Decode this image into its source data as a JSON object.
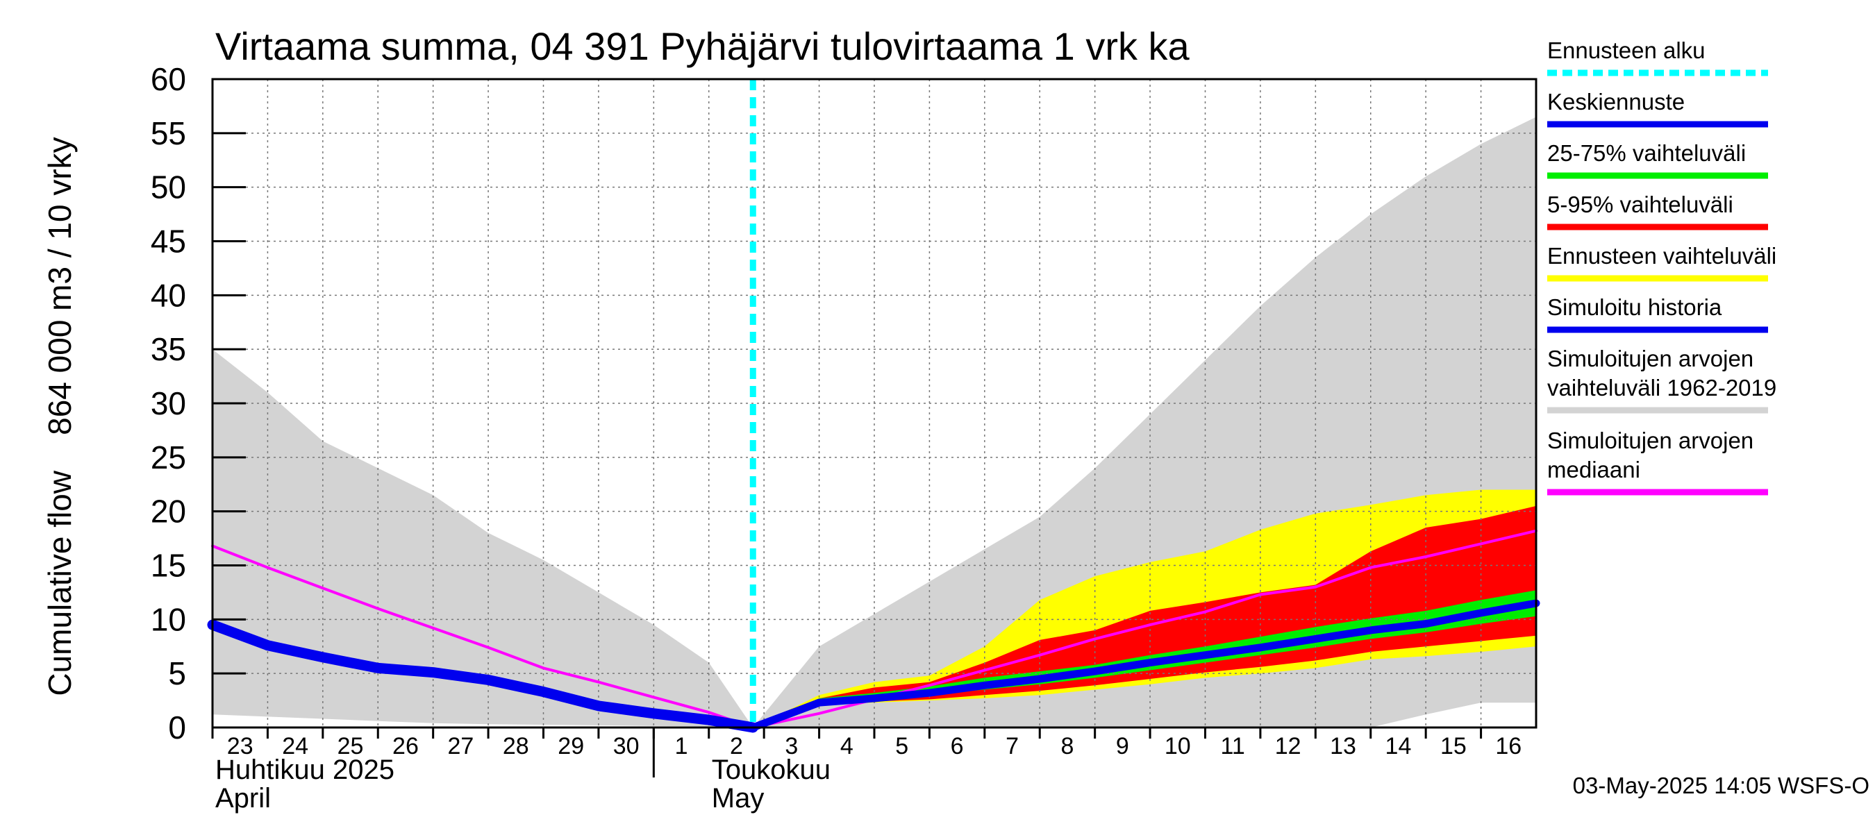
{
  "chart_data": {
    "type": "area",
    "title": "Virtaama summa, 04 391 Pyhäjärvi tulovirtaama 1 vrk ka",
    "ylabel": "Cumulative flow    864 000 m3 / 10 vrky",
    "ylim": [
      0,
      60
    ],
    "yticks": [
      0,
      5,
      10,
      15,
      20,
      25,
      30,
      35,
      40,
      45,
      50,
      55,
      60
    ],
    "grid": true,
    "x_dates": [
      "2025-04-23",
      "2025-04-24",
      "2025-04-25",
      "2025-04-26",
      "2025-04-27",
      "2025-04-28",
      "2025-04-29",
      "2025-04-30",
      "2025-05-01",
      "2025-05-02",
      "2025-05-03",
      "2025-05-04",
      "2025-05-05",
      "2025-05-06",
      "2025-05-07",
      "2025-05-08",
      "2025-05-09",
      "2025-05-10",
      "2025-05-11",
      "2025-05-12",
      "2025-05-13",
      "2025-05-14",
      "2025-05-15",
      "2025-05-16",
      "2025-05-17"
    ],
    "x_tick_labels": [
      "23",
      "24",
      "25",
      "26",
      "27",
      "28",
      "29",
      "30",
      "1",
      "2",
      "3",
      "4",
      "5",
      "6",
      "7",
      "8",
      "9",
      "10",
      "11",
      "12",
      "13",
      "14",
      "15",
      "16"
    ],
    "month_labels": [
      {
        "line1": "Huhtikuu  2025",
        "line2": "April",
        "date": "2025-04-23"
      },
      {
        "line1": "Toukokuu",
        "line2": "May",
        "date": "2025-05-02"
      }
    ],
    "forecast_start": "2025-05-02.8",
    "series": [
      {
        "name": "Simuloitujen arvojen vaihteluväli 1962-2019",
        "kind": "band",
        "color": "#d3d3d3",
        "x": [
          "2025-04-23",
          "2025-04-24",
          "2025-04-25",
          "2025-04-26",
          "2025-04-27",
          "2025-04-28",
          "2025-04-29",
          "2025-04-30",
          "2025-05-01",
          "2025-05-02",
          "2025-05-02.8",
          "2025-05-04",
          "2025-05-05",
          "2025-05-06",
          "2025-05-07",
          "2025-05-08",
          "2025-05-09",
          "2025-05-10",
          "2025-05-11",
          "2025-05-12",
          "2025-05-13",
          "2025-05-14",
          "2025-05-15",
          "2025-05-16",
          "2025-05-17"
        ],
        "lower": [
          1.2,
          1.0,
          0.8,
          0.6,
          0.4,
          0.3,
          0.25,
          0.2,
          0.15,
          0.1,
          0,
          0,
          0,
          0,
          0,
          0,
          0,
          0,
          0,
          0,
          0,
          0,
          1.2,
          2.3,
          2.3
        ],
        "upper": [
          35,
          31,
          26.5,
          24,
          21.5,
          18,
          15.5,
          12.5,
          9.5,
          6,
          0,
          7.5,
          10.5,
          13.5,
          16.5,
          19.5,
          24,
          29,
          34,
          39,
          43.5,
          47.5,
          51,
          54,
          56.5
        ]
      },
      {
        "name": "Ennusteen vaihteluväli",
        "kind": "band",
        "color": "#ffff00",
        "x": [
          "2025-05-02.8",
          "2025-05-04",
          "2025-05-05",
          "2025-05-06",
          "2025-05-07",
          "2025-05-08",
          "2025-05-09",
          "2025-05-10",
          "2025-05-11",
          "2025-05-12",
          "2025-05-13",
          "2025-05-14",
          "2025-05-15",
          "2025-05-16",
          "2025-05-17"
        ],
        "lower": [
          0,
          2.2,
          2.3,
          2.5,
          2.7,
          3.0,
          3.5,
          4.0,
          4.6,
          5.0,
          5.5,
          6.3,
          6.6,
          7.0,
          7.5
        ],
        "upper": [
          0,
          3.0,
          4.2,
          4.8,
          7.5,
          11.8,
          14.0,
          15.3,
          16.3,
          18.3,
          19.8,
          20.6,
          21.5,
          22.0,
          22.0
        ]
      },
      {
        "name": "5-95% vaihteluväli",
        "kind": "band",
        "color": "#ff0000",
        "x": [
          "2025-05-02.8",
          "2025-05-04",
          "2025-05-05",
          "2025-05-06",
          "2025-05-07",
          "2025-05-08",
          "2025-05-09",
          "2025-05-10",
          "2025-05-11",
          "2025-05-12",
          "2025-05-13",
          "2025-05-14",
          "2025-05-15",
          "2025-05-16",
          "2025-05-17"
        ],
        "lower": [
          0,
          2.3,
          2.4,
          2.6,
          3.0,
          3.4,
          3.9,
          4.5,
          5.1,
          5.6,
          6.2,
          7.0,
          7.5,
          8.0,
          8.5
        ],
        "upper": [
          0,
          2.7,
          3.7,
          4.2,
          6.0,
          8.1,
          9.0,
          10.8,
          11.6,
          12.5,
          13.2,
          16.3,
          18.5,
          19.3,
          20.5
        ]
      },
      {
        "name": "25-75% vaihteluväli",
        "kind": "band",
        "color": "#00ee00",
        "x": [
          "2025-05-02.8",
          "2025-05-04",
          "2025-05-05",
          "2025-05-06",
          "2025-05-07",
          "2025-05-08",
          "2025-05-09",
          "2025-05-10",
          "2025-05-11",
          "2025-05-12",
          "2025-05-13",
          "2025-05-14",
          "2025-05-15",
          "2025-05-16",
          "2025-05-17"
        ],
        "lower": [
          0,
          2.2,
          2.6,
          3.0,
          3.5,
          4.0,
          4.6,
          5.3,
          6.0,
          6.7,
          7.4,
          8.2,
          8.8,
          9.6,
          10.3
        ],
        "upper": [
          0,
          2.7,
          3.2,
          3.8,
          4.6,
          5.2,
          5.8,
          6.7,
          7.5,
          8.4,
          9.3,
          10.1,
          10.8,
          11.8,
          12.7
        ]
      },
      {
        "name": "Keskiennuste",
        "kind": "line",
        "color": "#0000ee",
        "x": [
          "2025-05-02.8",
          "2025-05-04",
          "2025-05-05",
          "2025-05-06",
          "2025-05-07",
          "2025-05-08",
          "2025-05-09",
          "2025-05-10",
          "2025-05-11",
          "2025-05-12",
          "2025-05-13",
          "2025-05-14",
          "2025-05-15",
          "2025-05-16",
          "2025-05-17"
        ],
        "y": [
          0,
          2.3,
          2.7,
          3.2,
          3.9,
          4.5,
          5.2,
          6.0,
          6.7,
          7.4,
          8.2,
          9.0,
          9.6,
          10.6,
          11.5
        ]
      },
      {
        "name": "Simuloitu historia",
        "kind": "line",
        "color": "#0000ee",
        "x": [
          "2025-04-23",
          "2025-04-24",
          "2025-04-25",
          "2025-04-26",
          "2025-04-27",
          "2025-04-28",
          "2025-04-29",
          "2025-04-30",
          "2025-05-01",
          "2025-05-02",
          "2025-05-02.8"
        ],
        "y": [
          9.5,
          7.6,
          6.5,
          5.5,
          5.1,
          4.4,
          3.3,
          2.0,
          1.3,
          0.7,
          0
        ]
      },
      {
        "name": "Simuloitujen arvojen mediaani",
        "kind": "line",
        "color": "#ff00ff",
        "x": [
          "2025-04-23",
          "2025-04-24",
          "2025-04-25",
          "2025-04-26",
          "2025-04-27",
          "2025-04-28",
          "2025-04-29",
          "2025-04-30",
          "2025-05-01",
          "2025-05-02",
          "2025-05-02.8",
          "2025-05-04",
          "2025-05-05",
          "2025-05-06",
          "2025-05-07",
          "2025-05-08",
          "2025-05-09",
          "2025-05-10",
          "2025-05-11",
          "2025-05-12",
          "2025-05-13",
          "2025-05-14",
          "2025-05-15",
          "2025-05-16",
          "2025-05-17"
        ],
        "y": [
          16.8,
          14.8,
          12.9,
          11.0,
          9.2,
          7.4,
          5.5,
          4.2,
          2.8,
          1.4,
          0,
          1.3,
          2.6,
          3.9,
          5.3,
          6.7,
          8.2,
          9.5,
          10.7,
          12.3,
          13.0,
          14.8,
          15.8,
          17.0,
          18.2
        ]
      }
    ],
    "legend": {
      "placement": "right",
      "items": [
        {
          "label": "Ennusteen alku",
          "color": "#00ffff",
          "style": "dashed"
        },
        {
          "label": "Keskiennuste",
          "color": "#0000ee",
          "style": "line"
        },
        {
          "label": "25-75% vaihteluväli",
          "color": "#00ee00",
          "style": "line"
        },
        {
          "label": "5-95% vaihteluväli",
          "color": "#ff0000",
          "style": "line"
        },
        {
          "label": "Ennusteen vaihteluväli",
          "color": "#ffff00",
          "style": "line"
        },
        {
          "label": "Simuloitu historia",
          "color": "#0000ee",
          "style": "line"
        },
        {
          "label": "Simuloitujen arvojen vaihteluväli 1962-2019",
          "color": "#d3d3d3",
          "style": "line"
        },
        {
          "label": "Simuloitujen arvojen mediaani",
          "color": "#ff00ff",
          "style": "line"
        }
      ]
    },
    "footer": "03-May-2025 14:05 WSFS-O"
  }
}
